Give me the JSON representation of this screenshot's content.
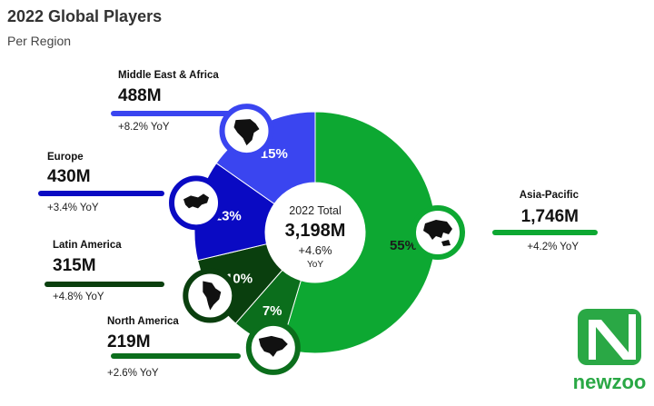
{
  "header": {
    "title": "2022 Global Players",
    "subtitle": "Per Region"
  },
  "center": {
    "label": "2022 Total",
    "value": "3,198M",
    "yoy": "+4.6%",
    "yoy_unit": "YoY"
  },
  "brand": {
    "name": "newzoo"
  },
  "colors": {
    "asia_pacific": "#0da832",
    "middle_east_africa": "#3a45f0",
    "europe": "#0a0ac3",
    "latin_america": "#0a3f0e",
    "north_america": "#0b6e1c"
  },
  "chart_data": {
    "type": "pie",
    "title": "2022 Global Players",
    "subtitle": "Per Region",
    "series": [
      {
        "name": "Asia-Pacific",
        "value_label": "1,746M",
        "value": 1746,
        "percent_label": "55%",
        "yoy": "+4.2% YoY",
        "color": "#0da832",
        "icon": "asia-pacific-map-icon"
      },
      {
        "name": "North America",
        "value_label": "219M",
        "value": 219,
        "percent_label": "7%",
        "yoy": "+2.6% YoY",
        "color": "#0b6e1c",
        "icon": "north-america-map-icon"
      },
      {
        "name": "Latin America",
        "value_label": "315M",
        "value": 315,
        "percent_label": "10%",
        "yoy": "+4.8% YoY",
        "color": "#0a3f0e",
        "icon": "latin-america-map-icon"
      },
      {
        "name": "Europe",
        "value_label": "430M",
        "value": 430,
        "percent_label": "13%",
        "yoy": "+3.4% YoY",
        "color": "#0a0ac3",
        "icon": "europe-map-icon"
      },
      {
        "name": "Middle East & Africa",
        "value_label": "488M",
        "value": 488,
        "percent_label": "15%",
        "yoy": "+8.2% YoY",
        "color": "#3a45f0",
        "icon": "africa-map-icon"
      }
    ]
  }
}
